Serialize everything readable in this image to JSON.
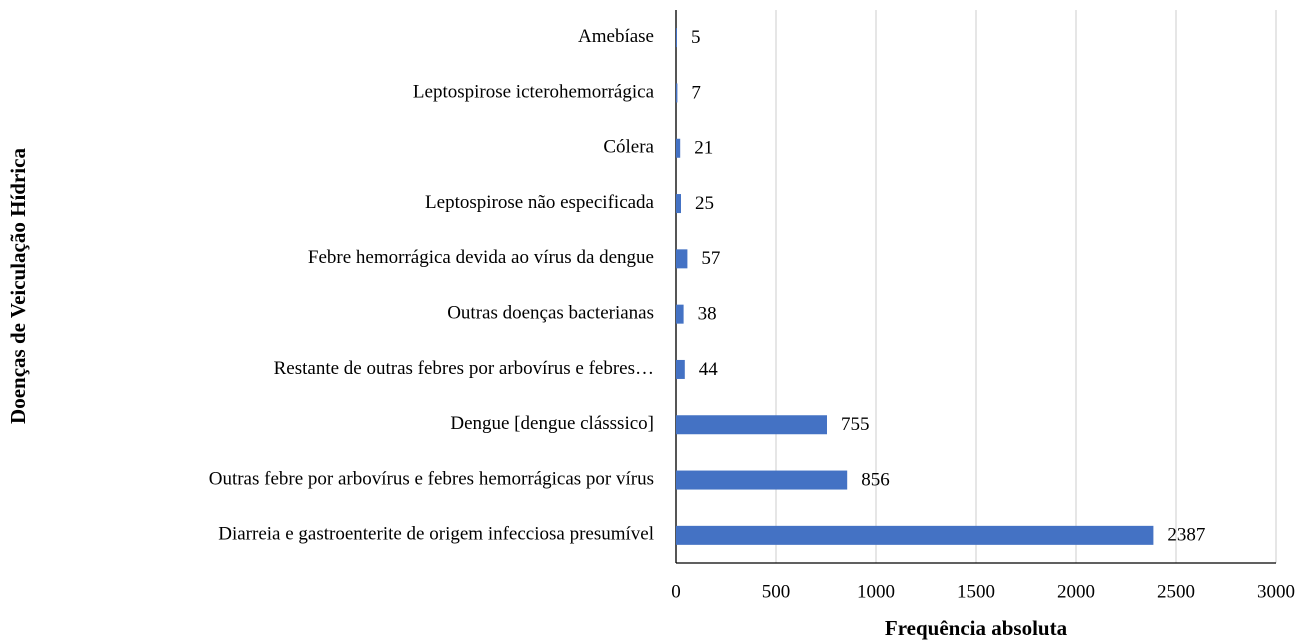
{
  "chart_data": {
    "type": "barh",
    "xlabel": "Frequência absoluta",
    "ylabel": "Doenças de Veiculação Hídrica",
    "categories": [
      "Amebíase",
      "Leptospirose icterohemorrágica",
      "Cólera",
      "Leptospirose não especificada",
      "Febre hemorrágica devida ao vírus da dengue",
      "Outras doenças bacterianas",
      "Restante de outras febres por arbovírus e febres…",
      "Dengue [dengue clásssico]",
      "Outras febre por arbovírus e febres  hemorrágicas por vírus",
      "Diarreia e gastroenterite de origem infecciosa  presumível"
    ],
    "values": [
      5,
      7,
      21,
      25,
      57,
      38,
      44,
      755,
      856,
      2387
    ],
    "color": "#4472c4",
    "xlim": [
      0,
      3000
    ],
    "xticks": [
      0,
      500,
      1000,
      1500,
      2000,
      2500,
      3000
    ],
    "grid": true
  }
}
